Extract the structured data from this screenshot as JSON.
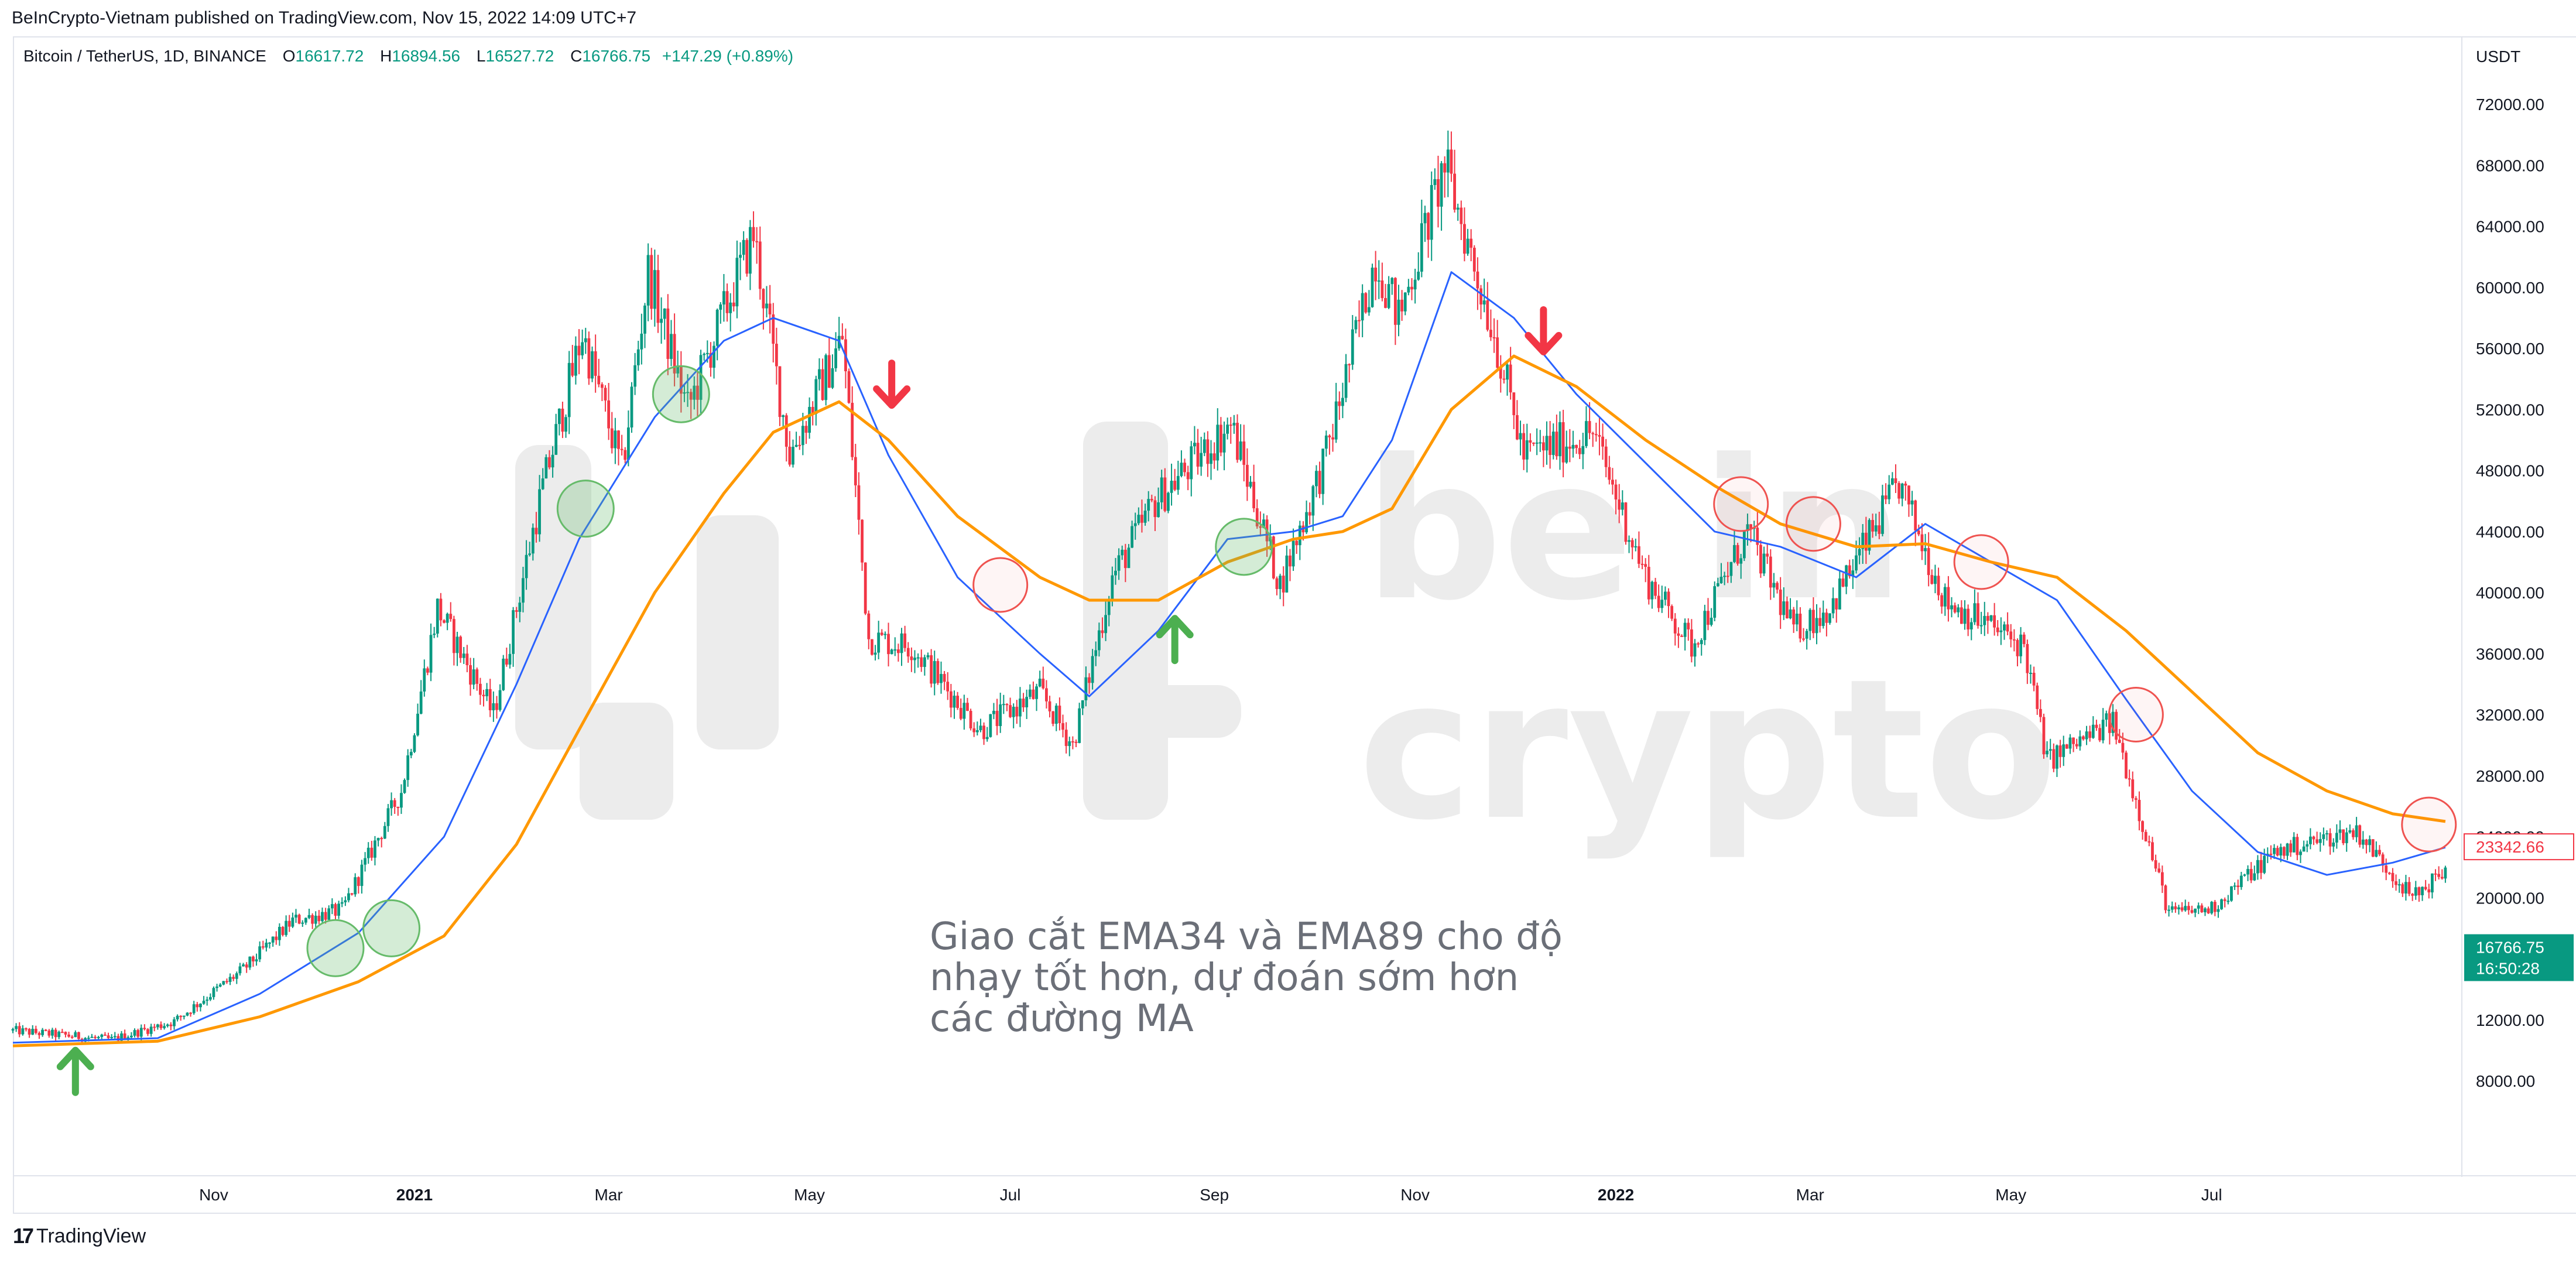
{
  "header": {
    "published": "BeInCrypto-Vietnam published on TradingView.com, Nov 15, 2022 14:09 UTC+7"
  },
  "legend": {
    "symbol": "Bitcoin / TetherUS, 1D, BINANCE",
    "open_label": "O",
    "open": "16617.72",
    "high_label": "H",
    "high": "16894.56",
    "low_label": "L",
    "low": "16527.72",
    "close_label": "C",
    "close": "16766.75",
    "change": "+147.29 (+0.89%)"
  },
  "footer": {
    "logo_mark": "17",
    "logo_text": "TradingView"
  },
  "watermark": {
    "line1": "be in",
    "line2": "crypto"
  },
  "annotation": {
    "line1": "Giao cắt EMA34 và EMA89 cho độ",
    "line2": "nhạy tốt hơn, dự đoán sớm hơn",
    "line3": "các đường MA"
  },
  "price_tags": {
    "ema_value": "23342.66",
    "last_price": "16766.75",
    "countdown": "16:50:28"
  },
  "colors": {
    "up": "#089981",
    "down": "#f23645",
    "ema34": "#2962ff",
    "ema89": "#ff9800",
    "buy_arrow": "#4caf50",
    "sell_arrow": "#f23645",
    "circle_green": "#66bb6a",
    "circle_red": "#ef5350"
  },
  "chart_data": {
    "type": "candlestick",
    "title": "Bitcoin / TetherUS, 1D, BINANCE",
    "y_axis_unit": "USDT",
    "y_ticks": [
      8000,
      12000,
      16000,
      20000,
      24000,
      28000,
      32000,
      36000,
      40000,
      44000,
      48000,
      52000,
      56000,
      60000,
      64000,
      68000,
      72000
    ],
    "y_tick_labels": [
      "8000.00",
      "12000.00",
      "16000.00",
      "20000.00",
      "24000.00",
      "28000.00",
      "32000.00",
      "36000.00",
      "40000.00",
      "44000.00",
      "48000.00",
      "52000.00",
      "56000.00",
      "60000.00",
      "64000.00",
      "68000.00",
      "72000.00"
    ],
    "ylim": [
      2000,
      78000
    ],
    "x_tick_labels": [
      "Nov",
      "2021",
      "Mar",
      "May",
      "Jul",
      "Sep",
      "Nov",
      "2022",
      "Mar",
      "May",
      "Jul"
    ],
    "x_tick_dates": [
      "2020-11-01",
      "2021-01-01",
      "2021-03-01",
      "2021-05-01",
      "2021-07-01",
      "2021-09-01",
      "2021-11-01",
      "2022-01-01",
      "2022-03-01",
      "2022-05-01",
      "2022-07-01"
    ],
    "x_range": [
      "2020-09-01",
      "2022-09-15"
    ],
    "price_path": {
      "dates": [
        "2020-09-01",
        "2020-10-01",
        "2020-10-20",
        "2020-11-10",
        "2020-11-25",
        "2020-12-10",
        "2020-12-28",
        "2021-01-08",
        "2021-01-25",
        "2021-02-08",
        "2021-02-21",
        "2021-03-05",
        "2021-03-13",
        "2021-03-25",
        "2021-04-14",
        "2021-04-25",
        "2021-05-11",
        "2021-05-19",
        "2021-06-01",
        "2021-06-22",
        "2021-07-10",
        "2021-07-20",
        "2021-08-01",
        "2021-08-14",
        "2021-09-06",
        "2021-09-21",
        "2021-10-05",
        "2021-10-20",
        "2021-10-27",
        "2021-11-10",
        "2021-11-25",
        "2021-12-04",
        "2021-12-25",
        "2022-01-10",
        "2022-01-24",
        "2022-02-10",
        "2022-02-24",
        "2022-03-07",
        "2022-03-28",
        "2022-04-11",
        "2022-05-05",
        "2022-05-12",
        "2022-06-01",
        "2022-06-18",
        "2022-07-01",
        "2022-07-20",
        "2022-08-14",
        "2022-08-31",
        "2022-09-10"
      ],
      "close": [
        11300,
        10700,
        11900,
        15300,
        18500,
        19200,
        27000,
        39000,
        32000,
        46000,
        57000,
        48000,
        61000,
        52000,
        63500,
        49000,
        56700,
        37000,
        36500,
        31000,
        33500,
        30000,
        41000,
        46000,
        51000,
        40500,
        49000,
        62000,
        58000,
        68000,
        57000,
        49000,
        50500,
        41000,
        36500,
        44000,
        37500,
        39000,
        47100,
        39500,
        36500,
        29000,
        31500,
        19000,
        19300,
        23000,
        24400,
        20000,
        21800
      ]
    },
    "series": [
      {
        "name": "EMA34",
        "dates": [
          "2020-09-01",
          "2020-10-15",
          "2020-11-15",
          "2020-12-15",
          "2021-01-10",
          "2021-02-01",
          "2021-02-20",
          "2021-03-15",
          "2021-04-05",
          "2021-04-20",
          "2021-05-10",
          "2021-05-25",
          "2021-06-15",
          "2021-07-10",
          "2021-07-25",
          "2021-08-15",
          "2021-09-05",
          "2021-09-25",
          "2021-10-10",
          "2021-10-25",
          "2021-11-12",
          "2021-12-01",
          "2021-12-20",
          "2022-01-10",
          "2022-01-31",
          "2022-02-20",
          "2022-03-15",
          "2022-04-05",
          "2022-04-25",
          "2022-05-15",
          "2022-06-05",
          "2022-06-25",
          "2022-07-15",
          "2022-08-05",
          "2022-08-25",
          "2022-09-10"
        ],
        "values": [
          10500,
          10800,
          13700,
          17700,
          24000,
          34000,
          43500,
          51500,
          56500,
          58000,
          56500,
          49000,
          41000,
          36000,
          33200,
          37500,
          43500,
          44000,
          45000,
          50000,
          61000,
          58000,
          53000,
          48500,
          44000,
          43000,
          41000,
          44500,
          42000,
          39500,
          33000,
          27000,
          23000,
          21500,
          22300,
          23300
        ]
      },
      {
        "name": "EMA89",
        "dates": [
          "2020-09-01",
          "2020-10-15",
          "2020-11-15",
          "2020-12-15",
          "2021-01-10",
          "2021-02-01",
          "2021-02-20",
          "2021-03-15",
          "2021-04-05",
          "2021-04-20",
          "2021-05-10",
          "2021-05-25",
          "2021-06-15",
          "2021-07-10",
          "2021-07-25",
          "2021-08-15",
          "2021-09-05",
          "2021-09-25",
          "2021-10-10",
          "2021-10-25",
          "2021-11-12",
          "2021-12-01",
          "2021-12-20",
          "2022-01-10",
          "2022-01-31",
          "2022-02-20",
          "2022-03-15",
          "2022-04-05",
          "2022-04-25",
          "2022-05-15",
          "2022-06-05",
          "2022-06-25",
          "2022-07-15",
          "2022-08-05",
          "2022-08-25",
          "2022-09-10"
        ],
        "values": [
          10300,
          10600,
          12200,
          14500,
          17500,
          23500,
          31000,
          40000,
          46500,
          50500,
          52500,
          50000,
          45000,
          41000,
          39500,
          39500,
          42000,
          43500,
          44000,
          45500,
          52000,
          55500,
          53500,
          50000,
          47000,
          44500,
          43000,
          43200,
          42000,
          41000,
          37500,
          33500,
          29500,
          27000,
          25500,
          25000
        ]
      }
    ],
    "buy_signals": [
      {
        "date": "2020-09-20",
        "price": 8700
      },
      {
        "date": "2021-08-20",
        "price": 37000
      }
    ],
    "sell_signals": [
      {
        "date": "2021-05-26",
        "price": 53500
      },
      {
        "date": "2021-12-10",
        "price": 57000
      }
    ],
    "crossover_circles_green": [
      {
        "date": "2020-12-08",
        "price": 16700
      },
      {
        "date": "2020-12-25",
        "price": 18000
      },
      {
        "date": "2021-02-22",
        "price": 45500
      },
      {
        "date": "2021-03-23",
        "price": 53000
      },
      {
        "date": "2021-09-10",
        "price": 43000
      }
    ],
    "crossover_circles_red": [
      {
        "date": "2021-06-28",
        "price": 40500
      },
      {
        "date": "2022-02-08",
        "price": 45800
      },
      {
        "date": "2022-03-02",
        "price": 44500
      },
      {
        "date": "2022-04-22",
        "price": 42000
      },
      {
        "date": "2022-06-08",
        "price": 32000
      },
      {
        "date": "2022-09-05",
        "price": 24800
      }
    ]
  }
}
